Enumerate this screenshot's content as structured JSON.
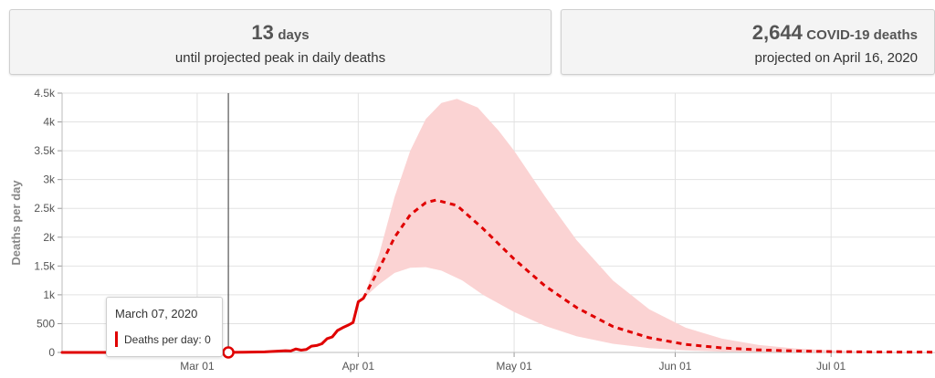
{
  "summary": {
    "peak_days_value": "13",
    "peak_days_unit": "days",
    "peak_days_caption": "until projected peak in daily deaths",
    "deaths_value": "2,644",
    "deaths_unit": "COVID-19 deaths",
    "deaths_caption": "projected on April 16, 2020"
  },
  "tooltip": {
    "date": "March 07, 2020",
    "series_label": "Deaths per day:",
    "series_value": "0"
  },
  "colors": {
    "line": "#e00000",
    "band": "#fbd3d3",
    "grid": "#e2e2e2",
    "cursor": "#555555"
  },
  "chart_data": {
    "type": "line",
    "ylabel": "Deaths per day",
    "xlabel": "",
    "ylim": [
      0,
      4500
    ],
    "xlim": [
      "2020-02-04",
      "2020-07-21"
    ],
    "y_ticks": [
      {
        "value": 0,
        "label": "0"
      },
      {
        "value": 500,
        "label": "500"
      },
      {
        "value": 1000,
        "label": "1k"
      },
      {
        "value": 1500,
        "label": "1.5k"
      },
      {
        "value": 2000,
        "label": "2k"
      },
      {
        "value": 2500,
        "label": "2.5k"
      },
      {
        "value": 3000,
        "label": "3k"
      },
      {
        "value": 3500,
        "label": "3.5k"
      },
      {
        "value": 4000,
        "label": "4k"
      },
      {
        "value": 4500,
        "label": "4.5k"
      }
    ],
    "x_ticks": [
      {
        "date": "2020-03-01",
        "label": "Mar 01"
      },
      {
        "date": "2020-04-01",
        "label": "Apr 01"
      },
      {
        "date": "2020-05-01",
        "label": "May 01"
      },
      {
        "date": "2020-06-01",
        "label": "Jun 01"
      },
      {
        "date": "2020-07-01",
        "label": "Jul 01"
      }
    ],
    "grid": true,
    "hover_date": "2020-03-07",
    "series": [
      {
        "name": "Deaths per day",
        "style": "solid",
        "points": [
          [
            "2020-02-04",
            0
          ],
          [
            "2020-03-07",
            0
          ],
          [
            "2020-03-10",
            5
          ],
          [
            "2020-03-14",
            10
          ],
          [
            "2020-03-16",
            20
          ],
          [
            "2020-03-18",
            30
          ],
          [
            "2020-03-19",
            25
          ],
          [
            "2020-03-20",
            60
          ],
          [
            "2020-03-21",
            40
          ],
          [
            "2020-03-22",
            50
          ],
          [
            "2020-03-23",
            110
          ],
          [
            "2020-03-24",
            120
          ],
          [
            "2020-03-25",
            150
          ],
          [
            "2020-03-26",
            240
          ],
          [
            "2020-03-27",
            270
          ],
          [
            "2020-03-28",
            380
          ],
          [
            "2020-03-29",
            430
          ],
          [
            "2020-03-30",
            470
          ],
          [
            "2020-03-31",
            520
          ],
          [
            "2020-04-01",
            880
          ],
          [
            "2020-04-02",
            940
          ]
        ]
      },
      {
        "name": "Projected deaths per day",
        "style": "dashed",
        "points": [
          [
            "2020-04-02",
            940
          ],
          [
            "2020-04-05",
            1450
          ],
          [
            "2020-04-08",
            2000
          ],
          [
            "2020-04-11",
            2390
          ],
          [
            "2020-04-14",
            2600
          ],
          [
            "2020-04-16",
            2644
          ],
          [
            "2020-04-20",
            2550
          ],
          [
            "2020-04-25",
            2150
          ],
          [
            "2020-05-01",
            1620
          ],
          [
            "2020-05-07",
            1150
          ],
          [
            "2020-05-13",
            780
          ],
          [
            "2020-05-20",
            450
          ],
          [
            "2020-05-27",
            255
          ],
          [
            "2020-06-03",
            140
          ],
          [
            "2020-06-10",
            80
          ],
          [
            "2020-06-17",
            45
          ],
          [
            "2020-06-24",
            25
          ],
          [
            "2020-07-01",
            15
          ],
          [
            "2020-07-10",
            8
          ],
          [
            "2020-07-21",
            5
          ]
        ]
      }
    ],
    "uncertainty_band": {
      "upper": [
        [
          "2020-04-02",
          940
        ],
        [
          "2020-04-05",
          1700
        ],
        [
          "2020-04-08",
          2700
        ],
        [
          "2020-04-11",
          3500
        ],
        [
          "2020-04-14",
          4050
        ],
        [
          "2020-04-17",
          4330
        ],
        [
          "2020-04-20",
          4400
        ],
        [
          "2020-04-24",
          4250
        ],
        [
          "2020-04-28",
          3850
        ],
        [
          "2020-05-01",
          3500
        ],
        [
          "2020-05-07",
          2700
        ],
        [
          "2020-05-13",
          1950
        ],
        [
          "2020-05-20",
          1250
        ],
        [
          "2020-05-27",
          750
        ],
        [
          "2020-06-03",
          430
        ],
        [
          "2020-06-10",
          240
        ],
        [
          "2020-06-17",
          130
        ],
        [
          "2020-06-24",
          70
        ],
        [
          "2020-07-01",
          35
        ],
        [
          "2020-07-10",
          15
        ],
        [
          "2020-07-21",
          8
        ]
      ],
      "lower": [
        [
          "2020-04-02",
          940
        ],
        [
          "2020-04-05",
          1180
        ],
        [
          "2020-04-08",
          1380
        ],
        [
          "2020-04-11",
          1470
        ],
        [
          "2020-04-14",
          1480
        ],
        [
          "2020-04-17",
          1420
        ],
        [
          "2020-04-21",
          1250
        ],
        [
          "2020-04-25",
          1000
        ],
        [
          "2020-05-01",
          700
        ],
        [
          "2020-05-07",
          460
        ],
        [
          "2020-05-13",
          280
        ],
        [
          "2020-05-20",
          150
        ],
        [
          "2020-05-27",
          75
        ],
        [
          "2020-06-03",
          35
        ],
        [
          "2020-06-10",
          15
        ],
        [
          "2020-06-17",
          8
        ],
        [
          "2020-06-24",
          4
        ],
        [
          "2020-07-01",
          2
        ],
        [
          "2020-07-21",
          1
        ]
      ]
    }
  }
}
